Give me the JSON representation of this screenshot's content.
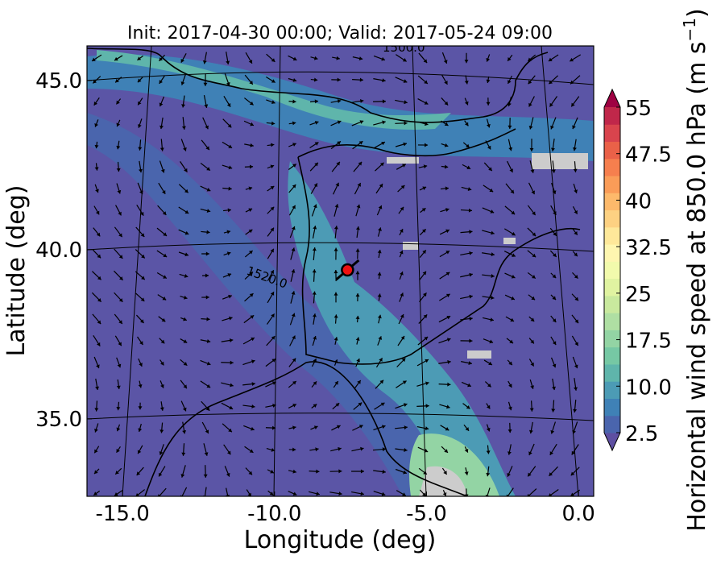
{
  "chart_data": {
    "type": "map",
    "title": "Init: 2017-04-30 00:00; Valid: 2017-05-24 09:00",
    "x_label": "Longitude (deg)",
    "y_label": "Latitude (deg)",
    "xlim": [
      -16.17,
      0.5
    ],
    "ylim": [
      32.71,
      46.02
    ],
    "xticks": [
      {
        "value": -15,
        "label": "-15.0"
      },
      {
        "value": -10,
        "label": "-10.0"
      },
      {
        "value": -5,
        "label": "-5.0"
      },
      {
        "value": 0,
        "label": "0.0"
      }
    ],
    "yticks": [
      {
        "value": 35,
        "label": "35.0"
      },
      {
        "value": 40,
        "label": "40.0"
      },
      {
        "value": 45,
        "label": "45.0"
      }
    ],
    "contour_labels": [
      "1520.0",
      "1500.0"
    ],
    "marker": {
      "lon": -7.6,
      "lat": 39.4,
      "color": "#ee1111"
    },
    "colorbar": {
      "label_parts": [
        "Horizontal wind speed at 850.0 hPa (m s",
        "−1",
        ")"
      ],
      "lim": [
        2.5,
        55
      ],
      "ticks": [
        2.5,
        {
          "value": 10,
          "label": "10.0"
        },
        17.5,
        25,
        32.5,
        40,
        47.5,
        55
      ],
      "colors": [
        "#5e4fa2",
        "#4a65ad",
        "#3f81b6",
        "#4c9bb5",
        "#5fb5ab",
        "#76c8a4",
        "#93d4a4",
        "#afdfa3",
        "#c9e99e",
        "#e0f3a1",
        "#f2faac",
        "#fef6b0",
        "#fee89a",
        "#fdd182",
        "#fdb96b",
        "#fa9c58",
        "#f67f4e",
        "#ea6148",
        "#d9444d",
        "#c0274a",
        "#9e0142"
      ]
    }
  }
}
